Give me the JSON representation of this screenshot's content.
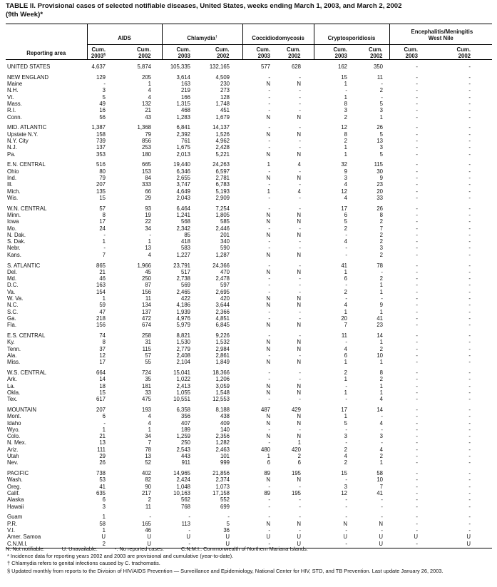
{
  "title": {
    "line1": "TABLE II. Provisional cases of selected notifiable diseases, United States, weeks ending March 1, 2003, and March 2, 2002",
    "line2": "(9th Week)*"
  },
  "header": {
    "area": "Reporting area",
    "groups": [
      {
        "label": "AIDS",
        "sup": ""
      },
      {
        "label": "Chlamydia",
        "sup": "†"
      },
      {
        "label": "Coccidiodomycosis",
        "sup": ""
      },
      {
        "label": "Cryptosporidiosis",
        "sup": ""
      },
      {
        "label": "Encephalitis/Meningitis West Nile",
        "sup": ""
      }
    ],
    "sub": [
      {
        "l1": "Cum.",
        "l2": "2003",
        "sup": "§"
      },
      {
        "l1": "Cum.",
        "l2": "2002",
        "sup": ""
      },
      {
        "l1": "Cum.",
        "l2": "2003",
        "sup": ""
      },
      {
        "l1": "Cum.",
        "l2": "2002",
        "sup": ""
      },
      {
        "l1": "Cum.",
        "l2": "2003",
        "sup": ""
      },
      {
        "l1": "Cum.",
        "l2": "2002",
        "sup": ""
      },
      {
        "l1": "Cum.",
        "l2": "2003",
        "sup": ""
      },
      {
        "l1": "Cum.",
        "l2": "2002",
        "sup": ""
      },
      {
        "l1": "Cum.",
        "l2": "2003",
        "sup": ""
      },
      {
        "l1": "Cum.",
        "l2": "2002",
        "sup": ""
      }
    ]
  },
  "rows": [
    {
      "area": "UNITED STATES",
      "v": [
        "4,637",
        "5,874",
        "105,335",
        "132,165",
        "577",
        "628",
        "162",
        "350",
        "-",
        "-"
      ]
    },
    {
      "area": "NEW ENGLAND",
      "v": [
        "129",
        "205",
        "3,614",
        "4,509",
        "-",
        "-",
        "15",
        "11",
        "-",
        "-"
      ]
    },
    {
      "area": "Maine",
      "v": [
        "-",
        "1",
        "163",
        "230",
        "N",
        "N",
        "1",
        "-",
        "-",
        "-"
      ]
    },
    {
      "area": "N.H.",
      "v": [
        "3",
        "4",
        "219",
        "273",
        "-",
        "-",
        "-",
        "2",
        "-",
        "-"
      ]
    },
    {
      "area": "Vt.",
      "v": [
        "5",
        "4",
        "166",
        "128",
        "-",
        "-",
        "1",
        "-",
        "-",
        "-"
      ]
    },
    {
      "area": "Mass.",
      "v": [
        "49",
        "132",
        "1,315",
        "1,748",
        "-",
        "-",
        "8",
        "5",
        "-",
        "-"
      ]
    },
    {
      "area": "R.I.",
      "v": [
        "16",
        "21",
        "468",
        "451",
        "-",
        "-",
        "3",
        "3",
        "-",
        "-"
      ]
    },
    {
      "area": "Conn.",
      "v": [
        "56",
        "43",
        "1,283",
        "1,679",
        "N",
        "N",
        "2",
        "1",
        "-",
        "-"
      ]
    },
    {
      "area": "MID. ATLANTIC",
      "v": [
        "1,387",
        "1,368",
        "6,841",
        "14,137",
        "-",
        "-",
        "12",
        "26",
        "-",
        "-"
      ]
    },
    {
      "area": "Upstate N.Y.",
      "v": [
        "158",
        "79",
        "2,392",
        "1,526",
        "N",
        "N",
        "8",
        "5",
        "-",
        "-"
      ]
    },
    {
      "area": "N.Y. City",
      "v": [
        "739",
        "856",
        "761",
        "4,962",
        "-",
        "-",
        "2",
        "13",
        "-",
        "-"
      ]
    },
    {
      "area": "N.J.",
      "v": [
        "137",
        "253",
        "1,675",
        "2,428",
        "-",
        "-",
        "1",
        "3",
        "-",
        "-"
      ]
    },
    {
      "area": "Pa.",
      "v": [
        "353",
        "180",
        "2,013",
        "5,221",
        "N",
        "N",
        "1",
        "5",
        "-",
        "-"
      ]
    },
    {
      "area": "E.N. CENTRAL",
      "v": [
        "516",
        "665",
        "19,440",
        "24,263",
        "1",
        "4",
        "32",
        "115",
        "-",
        "-"
      ]
    },
    {
      "area": "Ohio",
      "v": [
        "80",
        "153",
        "6,346",
        "6,597",
        "-",
        "-",
        "9",
        "30",
        "-",
        "-"
      ]
    },
    {
      "area": "Ind.",
      "v": [
        "79",
        "84",
        "2,655",
        "2,781",
        "N",
        "N",
        "3",
        "9",
        "-",
        "-"
      ]
    },
    {
      "area": "Ill.",
      "v": [
        "207",
        "333",
        "3,747",
        "6,783",
        "-",
        "-",
        "4",
        "23",
        "-",
        "-"
      ]
    },
    {
      "area": "Mich.",
      "v": [
        "135",
        "66",
        "4,649",
        "5,193",
        "1",
        "4",
        "12",
        "20",
        "-",
        "-"
      ]
    },
    {
      "area": "Wis.",
      "v": [
        "15",
        "29",
        "2,043",
        "2,909",
        "-",
        "-",
        "4",
        "33",
        "-",
        "-"
      ]
    },
    {
      "area": "W.N. CENTRAL",
      "v": [
        "57",
        "93",
        "6,464",
        "7,254",
        "-",
        "-",
        "17",
        "26",
        "-",
        "-"
      ]
    },
    {
      "area": "Minn.",
      "v": [
        "8",
        "19",
        "1,241",
        "1,805",
        "N",
        "N",
        "6",
        "8",
        "-",
        "-"
      ]
    },
    {
      "area": "Iowa",
      "v": [
        "17",
        "22",
        "568",
        "585",
        "N",
        "N",
        "5",
        "2",
        "-",
        "-"
      ]
    },
    {
      "area": "Mo.",
      "v": [
        "24",
        "34",
        "2,342",
        "2,446",
        "-",
        "-",
        "2",
        "7",
        "-",
        "-"
      ]
    },
    {
      "area": "N. Dak.",
      "v": [
        "-",
        "-",
        "85",
        "201",
        "N",
        "N",
        "-",
        "2",
        "-",
        "-"
      ]
    },
    {
      "area": "S. Dak.",
      "v": [
        "1",
        "1",
        "418",
        "340",
        "-",
        "-",
        "4",
        "2",
        "-",
        "-"
      ]
    },
    {
      "area": "Nebr.",
      "v": [
        "-",
        "13",
        "583",
        "590",
        "-",
        "-",
        "-",
        "3",
        "-",
        "-"
      ]
    },
    {
      "area": "Kans.",
      "v": [
        "7",
        "4",
        "1,227",
        "1,287",
        "N",
        "N",
        "-",
        "2",
        "-",
        "-"
      ]
    },
    {
      "area": "S. ATLANTIC",
      "v": [
        "865",
        "1,966",
        "23,791",
        "24,366",
        "-",
        "-",
        "41",
        "78",
        "-",
        "-"
      ]
    },
    {
      "area": "Del.",
      "v": [
        "21",
        "45",
        "517",
        "470",
        "N",
        "N",
        "1",
        "-",
        "-",
        "-"
      ]
    },
    {
      "area": "Md.",
      "v": [
        "46",
        "250",
        "2,738",
        "2,478",
        "-",
        "-",
        "6",
        "2",
        "-",
        "-"
      ]
    },
    {
      "area": "D.C.",
      "v": [
        "163",
        "87",
        "569",
        "597",
        "-",
        "-",
        "-",
        "1",
        "-",
        "-"
      ]
    },
    {
      "area": "Va.",
      "v": [
        "154",
        "156",
        "2,465",
        "2,695",
        "-",
        "-",
        "2",
        "1",
        "-",
        "-"
      ]
    },
    {
      "area": "W. Va.",
      "v": [
        "1",
        "11",
        "422",
        "420",
        "N",
        "N",
        "-",
        "-",
        "-",
        "-"
      ]
    },
    {
      "area": "N.C.",
      "v": [
        "59",
        "134",
        "4,186",
        "3,644",
        "N",
        "N",
        "4",
        "9",
        "-",
        "-"
      ]
    },
    {
      "area": "S.C.",
      "v": [
        "47",
        "137",
        "1,939",
        "2,366",
        "-",
        "-",
        "1",
        "1",
        "-",
        "-"
      ]
    },
    {
      "area": "Ga.",
      "v": [
        "218",
        "472",
        "4,976",
        "4,851",
        "-",
        "-",
        "20",
        "41",
        "-",
        "-"
      ]
    },
    {
      "area": "Fla.",
      "v": [
        "156",
        "674",
        "5,979",
        "6,845",
        "N",
        "N",
        "7",
        "23",
        "-",
        "-"
      ]
    },
    {
      "area": "E.S. CENTRAL",
      "v": [
        "74",
        "258",
        "8,821",
        "9,226",
        "-",
        "-",
        "11",
        "14",
        "-",
        "-"
      ]
    },
    {
      "area": "Ky.",
      "v": [
        "8",
        "31",
        "1,530",
        "1,532",
        "N",
        "N",
        "-",
        "1",
        "-",
        "-"
      ]
    },
    {
      "area": "Tenn.",
      "v": [
        "37",
        "115",
        "2,779",
        "2,984",
        "N",
        "N",
        "4",
        "2",
        "-",
        "-"
      ]
    },
    {
      "area": "Ala.",
      "v": [
        "12",
        "57",
        "2,408",
        "2,861",
        "-",
        "-",
        "6",
        "10",
        "-",
        "-"
      ]
    },
    {
      "area": "Miss.",
      "v": [
        "17",
        "55",
        "2,104",
        "1,849",
        "N",
        "N",
        "1",
        "1",
        "-",
        "-"
      ]
    },
    {
      "area": "W.S. CENTRAL",
      "v": [
        "664",
        "724",
        "15,041",
        "18,366",
        "-",
        "-",
        "2",
        "8",
        "-",
        "-"
      ]
    },
    {
      "area": "Ark.",
      "v": [
        "14",
        "35",
        "1,022",
        "1,206",
        "-",
        "-",
        "1",
        "2",
        "-",
        "-"
      ]
    },
    {
      "area": "La.",
      "v": [
        "18",
        "181",
        "2,413",
        "3,059",
        "N",
        "N",
        "-",
        "1",
        "-",
        "-"
      ]
    },
    {
      "area": "Okla.",
      "v": [
        "15",
        "33",
        "1,055",
        "1,548",
        "N",
        "N",
        "1",
        "1",
        "-",
        "-"
      ]
    },
    {
      "area": "Tex.",
      "v": [
        "617",
        "475",
        "10,551",
        "12,553",
        "-",
        "-",
        "-",
        "4",
        "-",
        "-"
      ]
    },
    {
      "area": "MOUNTAIN",
      "v": [
        "207",
        "193",
        "6,358",
        "8,188",
        "487",
        "429",
        "17",
        "14",
        "-",
        "-"
      ]
    },
    {
      "area": "Mont.",
      "v": [
        "6",
        "4",
        "356",
        "438",
        "N",
        "N",
        "1",
        "-",
        "-",
        "-"
      ]
    },
    {
      "area": "Idaho",
      "v": [
        "-",
        "4",
        "407",
        "409",
        "N",
        "N",
        "5",
        "4",
        "-",
        "-"
      ]
    },
    {
      "area": "Wyo.",
      "v": [
        "1",
        "1",
        "189",
        "140",
        "-",
        "-",
        "-",
        "-",
        "-",
        "-"
      ]
    },
    {
      "area": "Colo.",
      "v": [
        "21",
        "34",
        "1,259",
        "2,356",
        "N",
        "N",
        "3",
        "3",
        "-",
        "-"
      ]
    },
    {
      "area": "N. Mex.",
      "v": [
        "13",
        "7",
        "250",
        "1,282",
        "-",
        "1",
        "-",
        "-",
        "-",
        "-"
      ]
    },
    {
      "area": "Ariz.",
      "v": [
        "111",
        "78",
        "2,543",
        "2,463",
        "480",
        "420",
        "2",
        "4",
        "-",
        "-"
      ]
    },
    {
      "area": "Utah",
      "v": [
        "29",
        "13",
        "443",
        "101",
        "1",
        "2",
        "4",
        "2",
        "-",
        "-"
      ]
    },
    {
      "area": "Nev.",
      "v": [
        "26",
        "52",
        "911",
        "999",
        "6",
        "6",
        "2",
        "1",
        "-",
        "-"
      ]
    },
    {
      "area": "PACIFIC",
      "v": [
        "738",
        "402",
        "14,965",
        "21,856",
        "89",
        "195",
        "15",
        "58",
        "-",
        "-"
      ]
    },
    {
      "area": "Wash.",
      "v": [
        "53",
        "82",
        "2,424",
        "2,374",
        "N",
        "N",
        "-",
        "10",
        "-",
        "-"
      ]
    },
    {
      "area": "Oreg.",
      "v": [
        "41",
        "90",
        "1,048",
        "1,073",
        "-",
        "-",
        "3",
        "7",
        "-",
        "-"
      ]
    },
    {
      "area": "Calif.",
      "v": [
        "635",
        "217",
        "10,163",
        "17,158",
        "89",
        "195",
        "12",
        "41",
        "-",
        "-"
      ]
    },
    {
      "area": "Alaska",
      "v": [
        "6",
        "2",
        "562",
        "552",
        "-",
        "-",
        "-",
        "-",
        "-",
        "-"
      ]
    },
    {
      "area": "Hawaii",
      "v": [
        "3",
        "11",
        "768",
        "699",
        "-",
        "-",
        "-",
        "-",
        "-",
        "-"
      ]
    },
    {
      "area": "Guam",
      "v": [
        "1",
        "-",
        "-",
        "-",
        "-",
        "-",
        "-",
        "-",
        "-",
        "-"
      ]
    },
    {
      "area": "P.R.",
      "v": [
        "58",
        "165",
        "113",
        "5",
        "N",
        "N",
        "N",
        "N",
        "-",
        "-"
      ]
    },
    {
      "area": "V.I.",
      "v": [
        "1",
        "46",
        "-",
        "36",
        "-",
        "-",
        "-",
        "-",
        "-",
        "-"
      ]
    },
    {
      "area": "Amer. Samoa",
      "v": [
        "U",
        "U",
        "U",
        "U",
        "U",
        "U",
        "U",
        "U",
        "U",
        "U"
      ]
    },
    {
      "area": "C.N.M.I.",
      "v": [
        "2",
        "U",
        "-",
        "U",
        "-",
        "U",
        "-",
        "U",
        "-",
        "U"
      ]
    }
  ],
  "footnotes": {
    "legend": [
      "N: Not notifiable.",
      "U: Unavailable.",
      "-: No reported cases.",
      "C.N.M.I.: Commonwealth of Northern Mariana Islands."
    ],
    "notes": [
      "* Incidence data for reporting years 2002 and 2003 are provisional and cumulative (year-to-date).",
      "† Chlamydia refers to genital infections caused by C. trachomatis.",
      "§ Updated monthly from reports to the Division of HIV/AIDS Prevention — Surveillance and Epidemiology, National Center for HIV, STD, and TB Prevention. Last update January 26, 2003."
    ]
  }
}
